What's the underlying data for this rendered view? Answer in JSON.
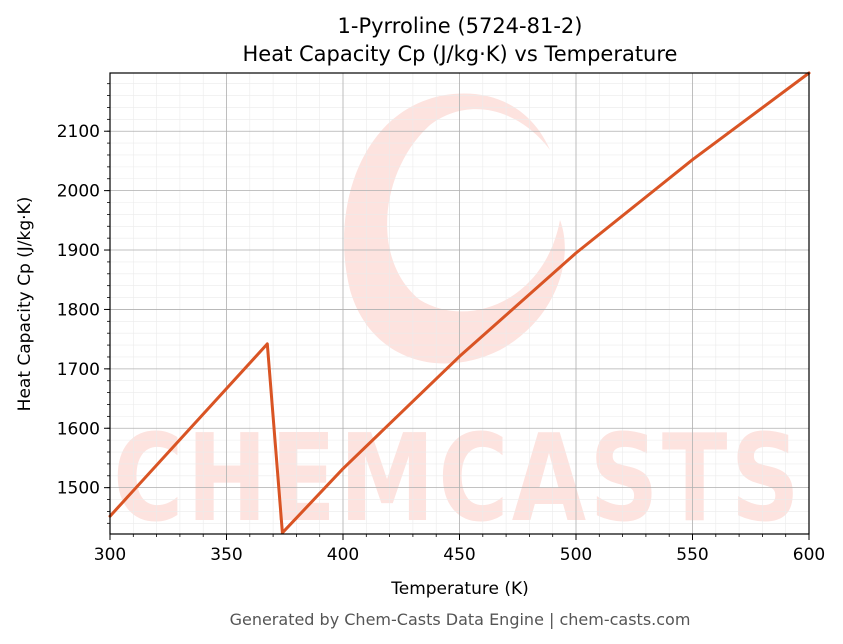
{
  "chart_data": {
    "type": "line",
    "title": "1-Pyrroline (5724-81-2)",
    "subtitle": "Heat Capacity Cp (J/kg·K) vs Temperature",
    "xlabel": "Temperature (K)",
    "ylabel": "Heat Capacity Cp (J/kg·K)",
    "xlim": [
      300,
      600
    ],
    "ylim": [
      1422,
      2198
    ],
    "xticks": [
      300,
      350,
      400,
      450,
      500,
      550,
      600
    ],
    "yticks": [
      1500,
      1600,
      1700,
      1800,
      1900,
      2000,
      2100
    ],
    "grid": true,
    "line_color": "#d95424",
    "series": [
      {
        "x": [
          300,
          367.5,
          374,
          400,
          450,
          500,
          550,
          600
        ],
        "y": [
          1452,
          1742,
          1424,
          1532,
          1721,
          1895,
          2052,
          2198
        ]
      }
    ]
  },
  "watermark": {
    "text": "CHEMCASTS",
    "color": "#fde3df"
  },
  "footer": "Generated by Chem-Casts Data Engine | chem-casts.com"
}
